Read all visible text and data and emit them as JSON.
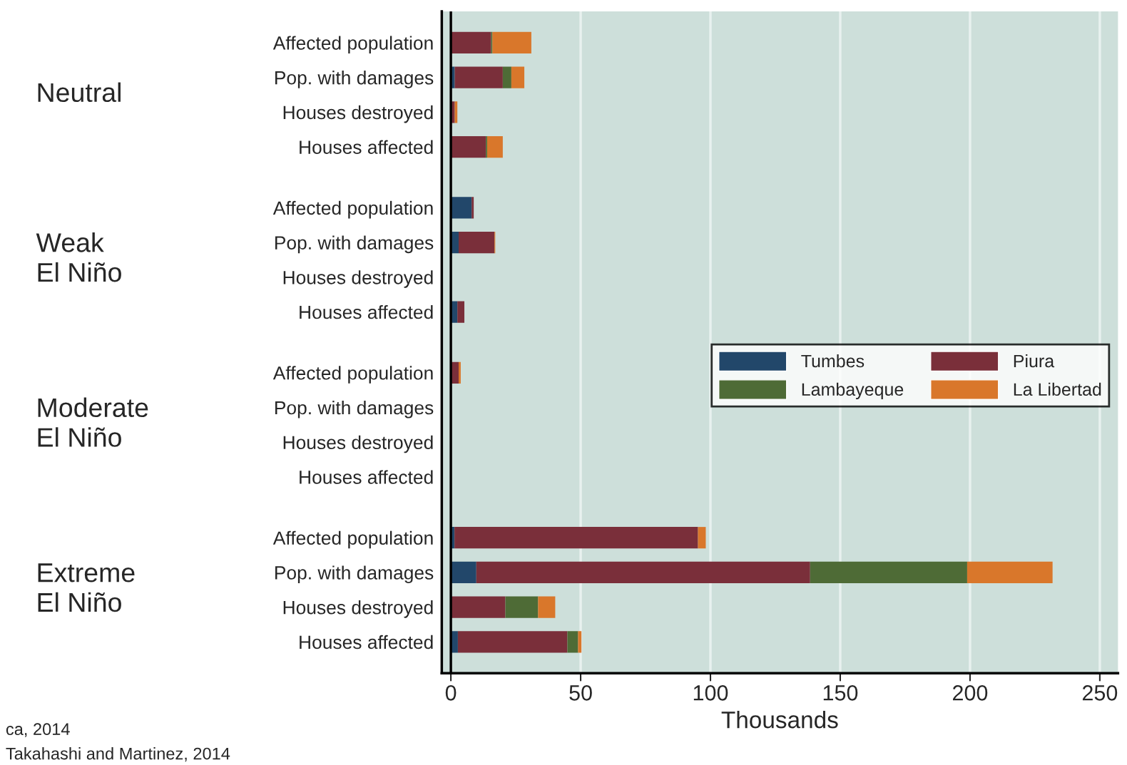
{
  "chart_data": {
    "type": "bar",
    "orientation": "horizontal",
    "stacked": true,
    "xlabel": "Thousands",
    "categories": [
      "Affected population",
      "Pop. with damages",
      "Houses destroyed",
      "Houses affected",
      "Affected population",
      "Pop. with damages",
      "Houses destroyed",
      "Houses affected",
      "Affected population",
      "Pop. with damages",
      "Houses destroyed",
      "Houses affected",
      "Affected population",
      "Pop. with damages",
      "Houses destroyed",
      "Houses affected"
    ],
    "series": [
      {
        "name": "Tumbes",
        "color": "#22476a",
        "values": [
          0,
          1.5,
          0,
          0,
          8,
          3,
          0,
          2.5,
          0,
          0,
          0,
          0,
          1.4,
          9.8,
          0,
          2.7
        ]
      },
      {
        "name": "Piura",
        "color": "#7a2f3a",
        "values": [
          15.5,
          18.5,
          1.5,
          13.5,
          0.8,
          13.8,
          0,
          2.7,
          3,
          0,
          0,
          0,
          93.8,
          128.6,
          21,
          42.2
        ]
      },
      {
        "name": "Lambayeque",
        "color": "#4e6b36",
        "values": [
          0.5,
          3.3,
          0,
          0.5,
          0,
          0,
          0,
          0,
          0,
          0,
          0,
          0,
          0,
          60.5,
          12.6,
          4.1
        ]
      },
      {
        "name": "La Libertad",
        "color": "#d9772b",
        "values": [
          15,
          5,
          1,
          6,
          0,
          0.3,
          0,
          0,
          0.8,
          0,
          0,
          0,
          3,
          32.9,
          6.6,
          1.3
        ]
      }
    ],
    "xlim": [
      -3.5,
      257
    ],
    "xticks": [
      0,
      50,
      100,
      150,
      200,
      250
    ],
    "grid": "x",
    "legend": "right",
    "annotations": [
      "Neutral",
      "Weak\nEl Niño",
      "Moderate\nEl Niño",
      "Extreme\nEl Niño",
      "ca, 2014",
      "Takahashi and Martinez, 2014"
    ]
  }
}
